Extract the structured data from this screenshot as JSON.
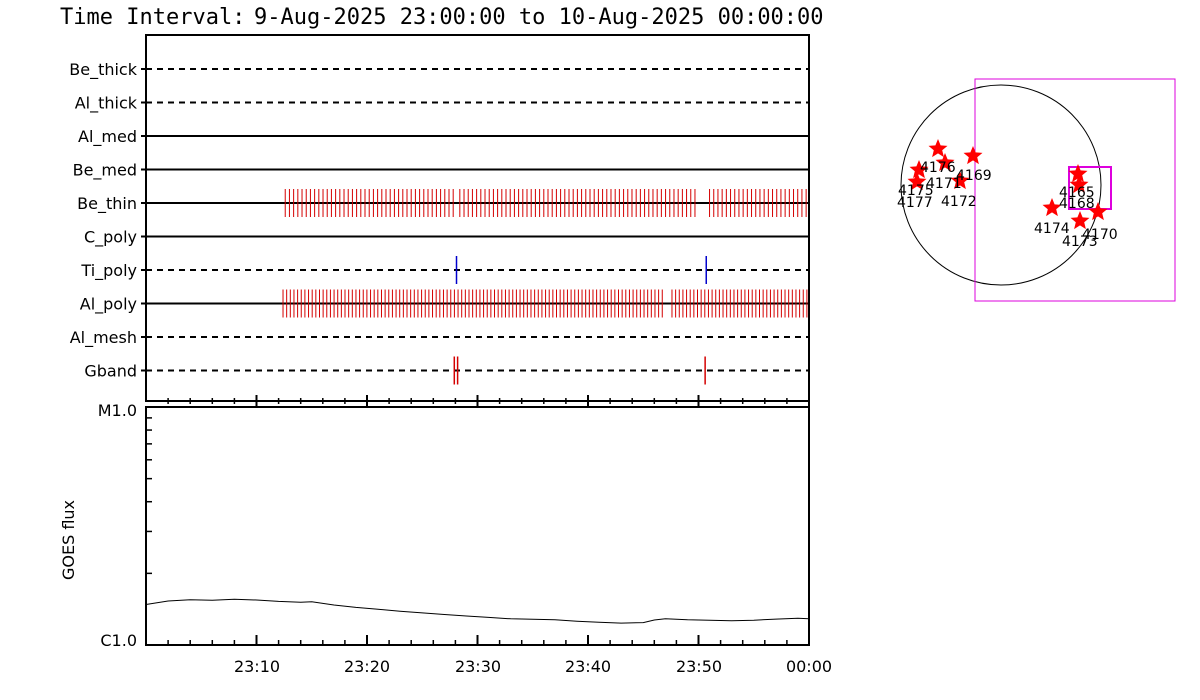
{
  "header": {
    "prefix": "Time Interval:",
    "range": "9-Aug-2025 23:00:00 to 10-Aug-2025 00:00:00"
  },
  "colors": {
    "event": "#d40000",
    "ti_event": "#0000cc",
    "fov": "#dd00dd",
    "star": "#ff0000"
  },
  "chart_data": [
    {
      "type": "timeline",
      "x_range_minutes": [
        0,
        60
      ],
      "channels": [
        {
          "name": "Be_thick",
          "style": "dashed",
          "events": []
        },
        {
          "name": "Al_thick",
          "style": "dashed",
          "events": []
        },
        {
          "name": "Al_med",
          "style": "solid",
          "events": []
        },
        {
          "name": "Be_med",
          "style": "solid",
          "events": []
        },
        {
          "name": "Be_thin",
          "style": "solid",
          "color": "event",
          "ranges": [
            [
              12.6,
              27.8
            ],
            [
              28.4,
              50.0
            ],
            [
              51.0,
              60.0
            ]
          ],
          "spacing": 0.38
        },
        {
          "name": "C_poly",
          "style": "solid",
          "events": []
        },
        {
          "name": "Ti_poly",
          "style": "dashed",
          "color": "ti_event",
          "events": [
            28.1,
            50.7
          ]
        },
        {
          "name": "Al_poly",
          "style": "solid",
          "color": "event",
          "ranges": [
            [
              12.4,
              47.0
            ],
            [
              47.6,
              60.0
            ]
          ],
          "spacing": 0.33
        },
        {
          "name": "Al_mesh",
          "style": "dashed",
          "events": []
        },
        {
          "name": "Gband",
          "style": "dashed",
          "color": "event",
          "events": [
            27.9,
            28.2,
            50.6
          ]
        }
      ]
    },
    {
      "type": "line",
      "ylabel": "GOES flux",
      "yticks": [
        "M1.0",
        "C1.0"
      ],
      "xticks": [
        "23:10",
        "23:20",
        "23:30",
        "23:40",
        "23:50",
        "00:00"
      ],
      "xtick_minutes": [
        10,
        20,
        30,
        40,
        50,
        60
      ],
      "ylim_fraction": [
        0,
        1
      ],
      "series": [
        {
          "x": [
            0,
            2,
            4,
            6,
            8,
            10,
            12,
            14,
            15,
            17,
            19,
            21,
            23,
            25,
            27,
            29,
            31,
            33,
            35,
            37,
            39,
            41,
            43,
            45,
            46,
            47,
            49,
            51,
            53,
            55,
            57,
            59,
            60
          ],
          "y": [
            0.17,
            0.185,
            0.19,
            0.188,
            0.192,
            0.189,
            0.183,
            0.18,
            0.182,
            0.168,
            0.158,
            0.15,
            0.142,
            0.135,
            0.128,
            0.122,
            0.116,
            0.11,
            0.108,
            0.106,
            0.1,
            0.096,
            0.092,
            0.094,
            0.105,
            0.11,
            0.106,
            0.104,
            0.102,
            0.104,
            0.109,
            0.112,
            0.11
          ]
        }
      ]
    }
  ],
  "sun_map": {
    "labels": [
      "4176",
      "4175",
      "4177",
      "4171",
      "4172",
      "4169",
      "4165",
      "4168",
      "4174",
      "4173",
      "4170"
    ]
  }
}
